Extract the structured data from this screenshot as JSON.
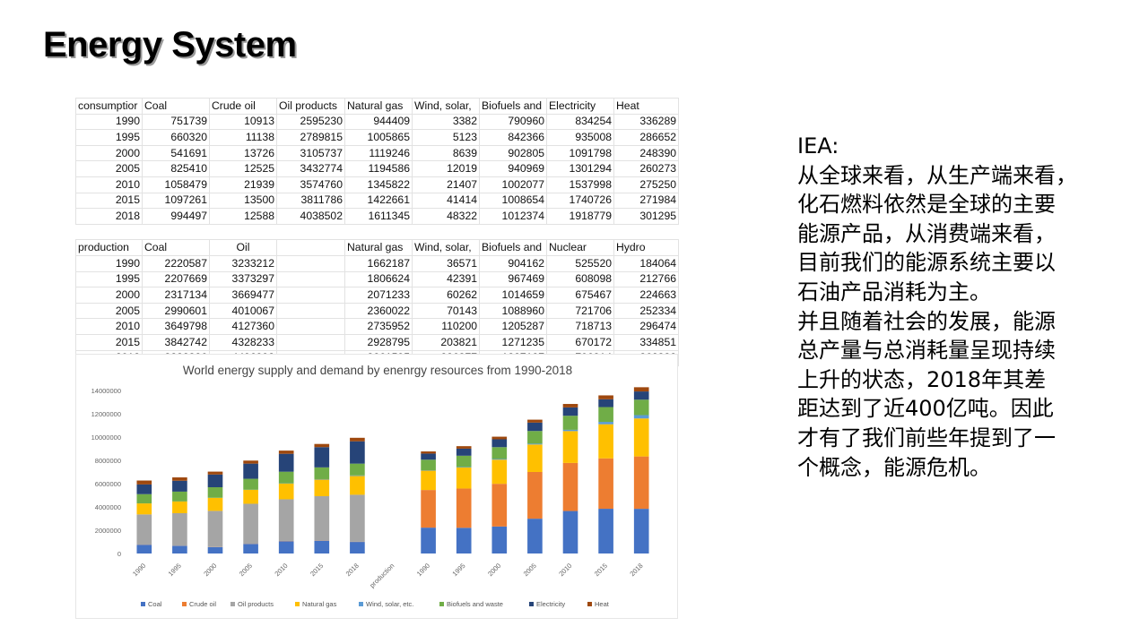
{
  "slide": {
    "title": "Energy System"
  },
  "consumption_table": {
    "headers": [
      "consumptior",
      "Coal",
      "Crude oil",
      "Oil products",
      "Natural gas",
      "Wind, solar,",
      "Biofuels and",
      "Electricity",
      "Heat"
    ],
    "rows": [
      [
        "1990",
        "751739",
        "10913",
        "2595230",
        "944409",
        "3382",
        "790960",
        "834254",
        "336289"
      ],
      [
        "1995",
        "660320",
        "11138",
        "2789815",
        "1005865",
        "5123",
        "842366",
        "935008",
        "286652"
      ],
      [
        "2000",
        "541691",
        "13726",
        "3105737",
        "1119246",
        "8639",
        "902805",
        "1091798",
        "248390"
      ],
      [
        "2005",
        "825410",
        "12525",
        "3432774",
        "1194586",
        "12019",
        "940969",
        "1301294",
        "260273"
      ],
      [
        "2010",
        "1058479",
        "21939",
        "3574760",
        "1345822",
        "21407",
        "1002077",
        "1537998",
        "275250"
      ],
      [
        "2015",
        "1097261",
        "13500",
        "3811786",
        "1422661",
        "41414",
        "1008654",
        "1740726",
        "271984"
      ],
      [
        "2018",
        "994497",
        "12588",
        "4038502",
        "1611345",
        "48322",
        "1012374",
        "1918779",
        "301295"
      ]
    ]
  },
  "production_table": {
    "headers": [
      "production",
      "Coal",
      "Oil",
      "",
      "Natural gas",
      "Wind, solar,",
      "Biofuels and",
      "Nuclear",
      "Hydro"
    ],
    "rows": [
      [
        "1990",
        "2220587",
        "3233212",
        "",
        "1662187",
        "36571",
        "904162",
        "525520",
        "184064"
      ],
      [
        "1995",
        "2207669",
        "3373297",
        "",
        "1806624",
        "42391",
        "967469",
        "608098",
        "212766"
      ],
      [
        "2000",
        "2317134",
        "3669477",
        "",
        "2071233",
        "60262",
        "1014659",
        "675467",
        "224663"
      ],
      [
        "2005",
        "2990601",
        "4010067",
        "",
        "2360022",
        "70143",
        "1088960",
        "721706",
        "252334"
      ],
      [
        "2010",
        "3649798",
        "4127360",
        "",
        "2735952",
        "110200",
        "1205287",
        "718713",
        "296474"
      ],
      [
        "2015",
        "3842742",
        "4328233",
        "",
        "2928795",
        "203821",
        "1271235",
        "670172",
        "334851"
      ],
      [
        "2018",
        "3838326",
        "4496998",
        "",
        "3261595",
        "286377",
        "1327127",
        "706814",
        "362332"
      ]
    ]
  },
  "chart_data": {
    "type": "bar",
    "stacked": true,
    "title": "World energy supply and demand by enenrgy resources from 1990-2018",
    "ylim": [
      0,
      14000000
    ],
    "y_ticks": [
      "0",
      "2000000",
      "4000000",
      "6000000",
      "8000000",
      "10000000",
      "12000000",
      "14000000"
    ],
    "categories": [
      "1990",
      "1995",
      "2000",
      "2005",
      "2010",
      "2015",
      "2018",
      "production",
      "1990",
      "1995",
      "2000",
      "2005",
      "2010",
      "2015",
      "2018"
    ],
    "series": [
      {
        "name": "Coal",
        "color": "#4472c4",
        "values": [
          751739,
          660320,
          541691,
          825410,
          1058479,
          1097261,
          994497,
          0,
          2220587,
          2207669,
          2317134,
          2990601,
          3649798,
          3842742,
          3838326
        ]
      },
      {
        "name": "Crude oil",
        "color": "#ed7d31",
        "values": [
          10913,
          11138,
          13726,
          12525,
          21939,
          13500,
          12588,
          0,
          3233212,
          3373297,
          3669477,
          4010067,
          4127360,
          4328233,
          4496998
        ]
      },
      {
        "name": "Oil products",
        "color": "#a5a5a5",
        "values": [
          2595230,
          2789815,
          3105737,
          3432774,
          3574760,
          3811786,
          4038502,
          0,
          0,
          0,
          0,
          0,
          0,
          0,
          0
        ]
      },
      {
        "name": "Natural gas",
        "color": "#ffc000",
        "values": [
          944409,
          1005865,
          1119246,
          1194586,
          1345822,
          1422661,
          1611345,
          0,
          1662187,
          1806624,
          2071233,
          2360022,
          2735952,
          2928795,
          3261595
        ]
      },
      {
        "name": "Wind, solar, etc.",
        "color": "#5b9bd5",
        "values": [
          3382,
          5123,
          8639,
          12019,
          21407,
          41414,
          48322,
          0,
          36571,
          42391,
          60262,
          70143,
          110200,
          203821,
          286377
        ]
      },
      {
        "name": "Biofuels and waste",
        "color": "#70ad47",
        "values": [
          790960,
          842366,
          902805,
          940969,
          1002077,
          1008654,
          1012374,
          0,
          904162,
          967469,
          1014659,
          1088960,
          1205287,
          1271235,
          1327127
        ]
      },
      {
        "name": "Electricity",
        "color": "#264478",
        "values": [
          834254,
          935008,
          1091798,
          1301294,
          1537998,
          1740726,
          1918779,
          0,
          525520,
          608098,
          675467,
          721706,
          718713,
          670172,
          706814
        ]
      },
      {
        "name": "Heat",
        "color": "#9e480e",
        "values": [
          336289,
          286652,
          248390,
          260273,
          275250,
          271984,
          301295,
          0,
          184064,
          212766,
          224663,
          252334,
          296474,
          334851,
          362332
        ]
      }
    ],
    "legend_position": "bottom",
    "grid": false
  },
  "text_panel": {
    "lines": [
      "IEA:",
      "从全球来看，从生产端来看，",
      "化石燃料依然是全球的主要",
      "能源产品，从消费端来看，",
      "目前我们的能源系统主要以",
      "石油产品消耗为主。",
      "并且随着社会的发展，能源",
      "总产量与总消耗量呈现持续",
      "上升的状态，2018年其差",
      "距达到了近400亿吨。因此",
      "才有了我们前些年提到了一",
      "个概念，能源危机。"
    ]
  }
}
